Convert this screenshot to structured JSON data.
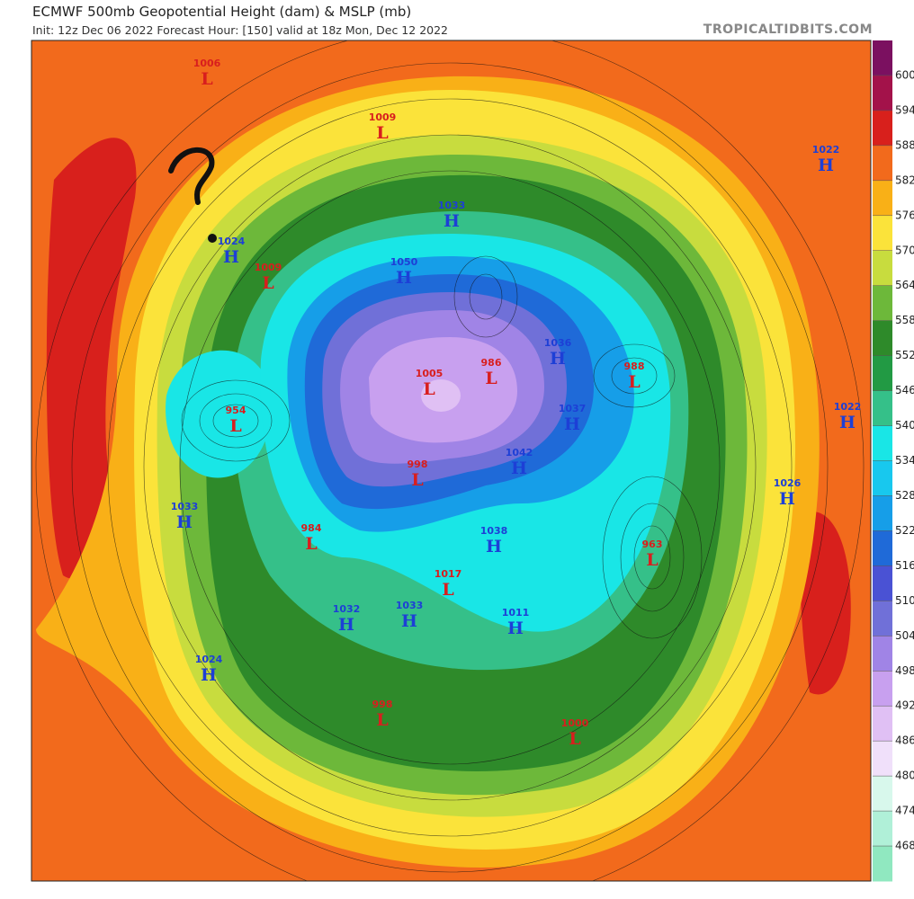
{
  "header": {
    "title": "ECMWF 500mb Geopotential Height (dam) & MSLP (mb)",
    "subtitle": "Init: 12z Dec 06 2022   Forecast Hour: [150]   valid at 18z Mon, Dec 12 2022",
    "brand": "TROPICALTIDBITS.COM"
  },
  "colorbar": {
    "ticks": [
      600,
      594,
      588,
      582,
      576,
      570,
      564,
      558,
      552,
      546,
      540,
      534,
      528,
      522,
      516,
      510,
      504,
      498,
      492,
      486,
      480,
      474,
      468
    ],
    "colors": [
      "#7b1060",
      "#a3124a",
      "#d8201c",
      "#f26a1c",
      "#f9b017",
      "#fbe33a",
      "#c8dc3e",
      "#6db83a",
      "#2e8a2a",
      "#229a44",
      "#35c089",
      "#19e6e6",
      "#18c8ee",
      "#169ee8",
      "#1f6ad8",
      "#4a52d4",
      "#7070d8",
      "#a084e6",
      "#c8a0ef",
      "#e0c0f4",
      "#f0e0fa",
      "#d8f8ec",
      "#b0f0d8",
      "#90e8c0"
    ]
  },
  "system_colors": {
    "H": "#1d3fd6",
    "L": "#d81e1e"
  },
  "systems": [
    {
      "value": "1006",
      "letter": "L"
    },
    {
      "value": "1009",
      "letter": "L"
    },
    {
      "value": "1022",
      "letter": "H"
    },
    {
      "value": "1033",
      "letter": "H"
    },
    {
      "value": "1024",
      "letter": "H"
    },
    {
      "value": "1009",
      "letter": "L"
    },
    {
      "value": "1050",
      "letter": "H"
    },
    {
      "value": "986",
      "letter": "L"
    },
    {
      "value": "1036",
      "letter": "H"
    },
    {
      "value": "988",
      "letter": "L"
    },
    {
      "value": "1005",
      "letter": "L"
    },
    {
      "value": "1037",
      "letter": "H"
    },
    {
      "value": "1022",
      "letter": "H"
    },
    {
      "value": "954",
      "letter": "L"
    },
    {
      "value": "1042",
      "letter": "H"
    },
    {
      "value": "998",
      "letter": "L"
    },
    {
      "value": "1026",
      "letter": "H"
    },
    {
      "value": "1033",
      "letter": "H"
    },
    {
      "value": "984",
      "letter": "L"
    },
    {
      "value": "1038",
      "letter": "H"
    },
    {
      "value": "963",
      "letter": "L"
    },
    {
      "value": "1017",
      "letter": "L"
    },
    {
      "value": "1033",
      "letter": "H"
    },
    {
      "value": "1032",
      "letter": "H"
    },
    {
      "value": "1011",
      "letter": "H"
    },
    {
      "value": "1024",
      "letter": "H"
    },
    {
      "value": "998",
      "letter": "L"
    },
    {
      "value": "1000",
      "letter": "L"
    }
  ]
}
